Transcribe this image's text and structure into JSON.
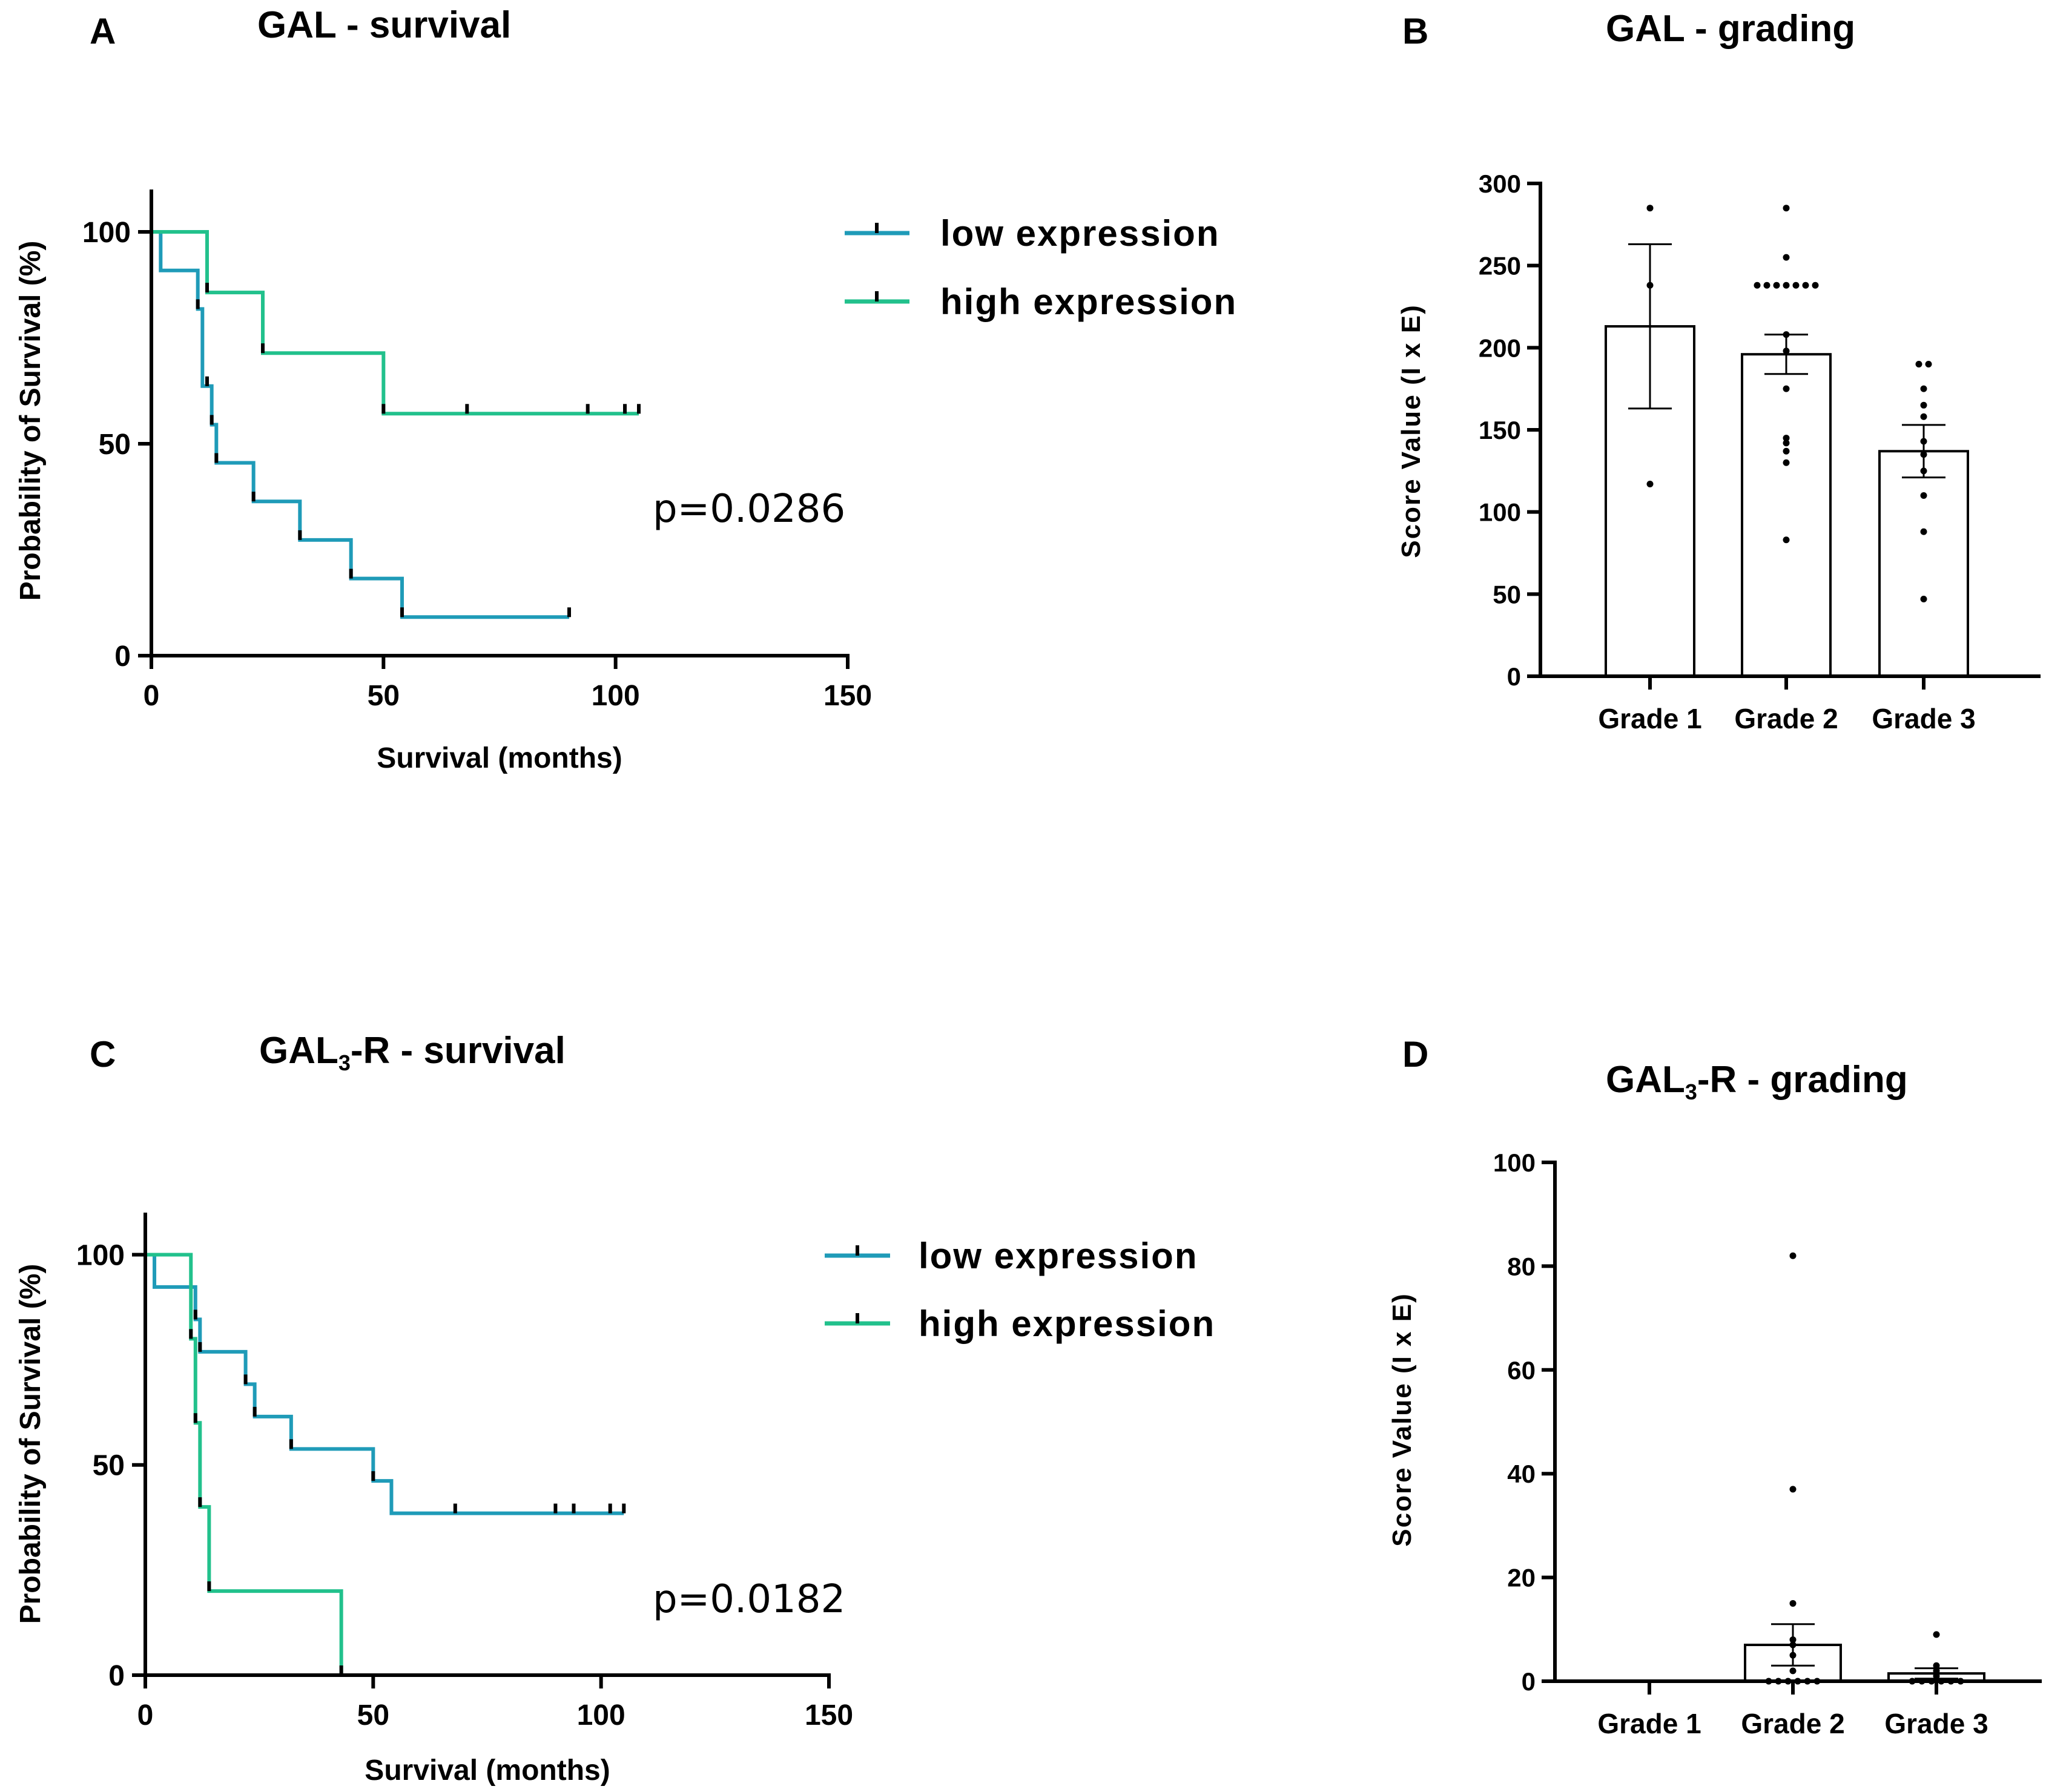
{
  "chart_data": [
    {
      "id": "A",
      "panel_label": "A",
      "type": "line",
      "subtype": "kaplan-meier",
      "title": "GAL - survival",
      "xlabel": "Survival (months)",
      "ylabel": "Probability of Survival (%)",
      "xlim": [
        0,
        150
      ],
      "ylim": [
        0,
        110
      ],
      "xticks": [
        0,
        50,
        100,
        150
      ],
      "yticks": [
        0,
        50,
        100
      ],
      "legend": "top-right",
      "annotation": "p=0.0286",
      "series": [
        {
          "name": "low expression",
          "color": "#1f9bb8",
          "steps": [
            [
              0,
              100
            ],
            [
              2,
              90.9
            ],
            [
              10,
              81.8
            ],
            [
              11,
              63.6
            ],
            [
              13,
              54.5
            ],
            [
              14,
              45.5
            ],
            [
              22,
              36.4
            ],
            [
              32,
              27.3
            ],
            [
              43,
              18.2
            ],
            [
              54,
              9.1
            ],
            [
              90,
              9.1
            ]
          ],
          "censored": [
            [
              10,
              81.8
            ],
            [
              12,
              63.6
            ],
            [
              13,
              54.5
            ],
            [
              14,
              45.5
            ],
            [
              22,
              36.4
            ],
            [
              32,
              27.3
            ],
            [
              43,
              18.2
            ],
            [
              54,
              9.1
            ],
            [
              90,
              9.1
            ]
          ]
        },
        {
          "name": "high expression",
          "color": "#22c18c",
          "steps": [
            [
              0,
              100
            ],
            [
              12,
              85.7
            ],
            [
              24,
              71.4
            ],
            [
              50,
              57.1
            ],
            [
              105,
              57.1
            ]
          ],
          "censored": [
            [
              12,
              85.7
            ],
            [
              24,
              71.4
            ],
            [
              50,
              57.1
            ],
            [
              68,
              57.1
            ],
            [
              94,
              57.1
            ],
            [
              102,
              57.1
            ],
            [
              105,
              57.1
            ]
          ]
        }
      ]
    },
    {
      "id": "B",
      "panel_label": "B",
      "type": "bar",
      "title": "GAL - grading",
      "xlabel": "",
      "ylabel": "Score Value (I x E)",
      "ylim": [
        0,
        300
      ],
      "yticks": [
        0,
        50,
        100,
        150,
        200,
        250,
        300
      ],
      "categories": [
        "Grade 1",
        "Grade 2",
        "Grade 3"
      ],
      "values": [
        213,
        196,
        137
      ],
      "errors": [
        50,
        12,
        16
      ],
      "points": [
        [
          285,
          238,
          117
        ],
        [
          285,
          255,
          238,
          238,
          238,
          238,
          238,
          238,
          238,
          208,
          198,
          175,
          145,
          142,
          137,
          130,
          83
        ],
        [
          190,
          190,
          175,
          165,
          158,
          143,
          135,
          125,
          110,
          88,
          47
        ]
      ]
    },
    {
      "id": "C",
      "panel_label": "C",
      "type": "line",
      "subtype": "kaplan-meier",
      "title": "GAL",
      "title_sub": "3",
      "title_suffix": "-R - survival",
      "xlabel": "Survival (months)",
      "ylabel": "Probability of Survival (%)",
      "xlim": [
        0,
        150
      ],
      "ylim": [
        0,
        110
      ],
      "xticks": [
        0,
        50,
        100,
        150
      ],
      "yticks": [
        0,
        50,
        100
      ],
      "legend": "top-right",
      "annotation": "p=0.0182",
      "series": [
        {
          "name": "low expression",
          "color": "#1f9bb8",
          "steps": [
            [
              0,
              100
            ],
            [
              2,
              92.3
            ],
            [
              11,
              84.6
            ],
            [
              12,
              76.9
            ],
            [
              22,
              69.2
            ],
            [
              24,
              61.5
            ],
            [
              32,
              53.8
            ],
            [
              50,
              46.2
            ],
            [
              54,
              38.5
            ],
            [
              105,
              38.5
            ]
          ],
          "censored": [
            [
              11,
              84.6
            ],
            [
              12,
              76.9
            ],
            [
              22,
              69.2
            ],
            [
              24,
              61.5
            ],
            [
              32,
              53.8
            ],
            [
              50,
              46.2
            ],
            [
              68,
              38.5
            ],
            [
              90,
              38.5
            ],
            [
              94,
              38.5
            ],
            [
              102,
              38.5
            ],
            [
              105,
              38.5
            ]
          ]
        },
        {
          "name": "high expression",
          "color": "#22c18c",
          "steps": [
            [
              0,
              100
            ],
            [
              10,
              80
            ],
            [
              11,
              60
            ],
            [
              12,
              40
            ],
            [
              14,
              20
            ],
            [
              43,
              0
            ]
          ],
          "censored": [
            [
              10,
              80
            ],
            [
              11,
              60
            ],
            [
              12,
              40
            ],
            [
              14,
              20
            ],
            [
              43,
              0
            ]
          ]
        }
      ]
    },
    {
      "id": "D",
      "panel_label": "D",
      "type": "bar",
      "title": "GAL",
      "title_sub": "3",
      "title_suffix": "-R  - grading",
      "xlabel": "",
      "ylabel": "Score Value (I x E)",
      "ylim": [
        0,
        100
      ],
      "yticks": [
        0,
        20,
        40,
        60,
        80,
        100
      ],
      "categories": [
        "Grade 1",
        "Grade 2",
        "Grade 3"
      ],
      "values": [
        0,
        7,
        1.5
      ],
      "errors": [
        0,
        4,
        1
      ],
      "points": [
        [],
        [
          82,
          37,
          15,
          8,
          7,
          5,
          2,
          0,
          0,
          0,
          0,
          0,
          0
        ],
        [
          9,
          3,
          2,
          1,
          0,
          0,
          0,
          0,
          0,
          0
        ]
      ]
    }
  ]
}
